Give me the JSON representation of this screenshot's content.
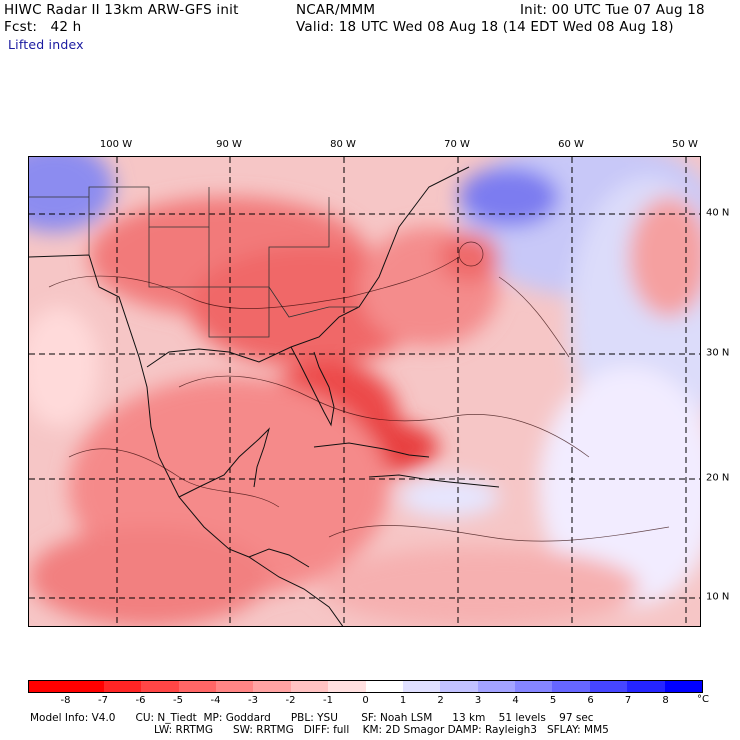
{
  "header": {
    "title": "HIWC Radar II 13km ARW-GFS init",
    "source": "NCAR/MMM",
    "init": "Init: 00 UTC Tue 07 Aug 18",
    "forecast": "Fcst:   42 h",
    "valid": "Valid: 18 UTC Wed 08 Aug 18 (14 EDT Wed 08 Aug 18)",
    "field": "Lifted index"
  },
  "map": {
    "longitude_labels": [
      "100 W",
      "90 W",
      "80 W",
      "70 W",
      "60 W",
      "50 W"
    ],
    "latitude_labels": [
      "40 N",
      "30 N",
      "20 N",
      "10 N"
    ]
  },
  "colorbar": {
    "unit": "°C",
    "tick_labels": [
      "-8",
      "-7",
      "-6",
      "-5",
      "-4",
      "-3",
      "-2",
      "-1",
      "0",
      "1",
      "2",
      "3",
      "4",
      "5",
      "6",
      "7",
      "8"
    ],
    "colors": [
      "#ff0000",
      "#ff2525",
      "#ff4646",
      "#ff6666",
      "#ff8585",
      "#ffa3a3",
      "#ffc2c2",
      "#ffe0e0",
      "#ffffff",
      "#e0e0ff",
      "#c2c2ff",
      "#a3a3ff",
      "#8585ff",
      "#6666ff",
      "#4646ff",
      "#2525ff",
      "#0000ff"
    ]
  },
  "footer": {
    "line1": "Model Info: V4.0      CU: N_Tiedt  MP: Goddard      PBL: YSU       SF: Noah LSM      13 km    51 levels    97 sec",
    "line2": "LW: RRTMG      SW: RRTMG   DIFF: full    KM: 2D Smagor DAMP: Rayleigh3   SFLAY: MM5"
  }
}
